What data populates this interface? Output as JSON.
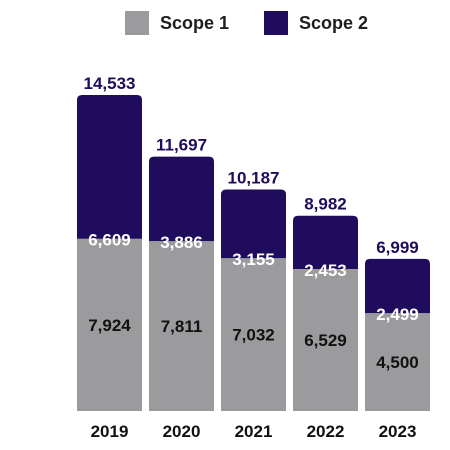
{
  "chart_data": {
    "type": "bar",
    "stacked": true,
    "categories": [
      "2019",
      "2020",
      "2021",
      "2022",
      "2023"
    ],
    "series": [
      {
        "name": "Scope 1",
        "values": [
          7924,
          7811,
          7032,
          6529,
          4500
        ],
        "labels": [
          "7,924",
          "7,811",
          "7,032",
          "6,529",
          "4,500"
        ],
        "color": "#9b9b9e"
      },
      {
        "name": "Scope 2",
        "values": [
          6609,
          3886,
          3155,
          2453,
          2499
        ],
        "labels": [
          "6,609",
          "3,886",
          "3,155",
          "2,453",
          "2,499"
        ],
        "color": "#1f0c5c"
      }
    ],
    "totals": [
      "14,533",
      "11,697",
      "10,187",
      "8,982",
      "6,999"
    ],
    "total_values": [
      14533,
      11697,
      10187,
      8982,
      6999
    ],
    "ylim": [
      0,
      14533
    ],
    "legend_position": "top",
    "grid": false,
    "colors": {
      "scope1": "#9b9b9e",
      "scope2": "#1f0c5c",
      "total_text": "#1f0c5c",
      "tick_text": "#111111",
      "scope1_label_text": "#111111",
      "scope2_label_text": "#ffffff"
    }
  }
}
